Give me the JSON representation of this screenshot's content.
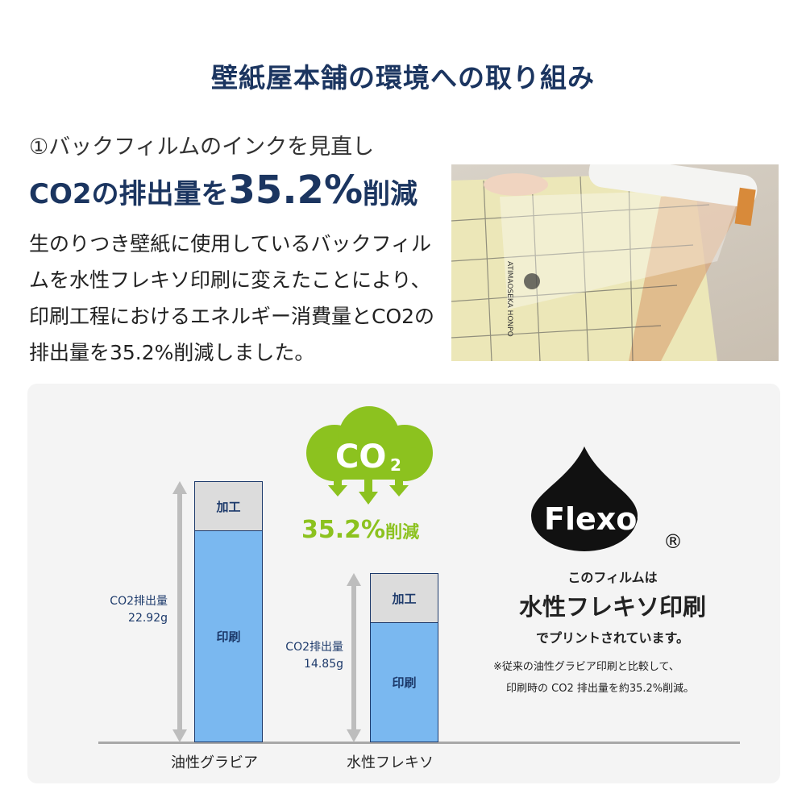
{
  "title": "壁紙屋本舗の環境への取り組み",
  "subtitle": "①バックフィルムのインクを見直し",
  "headline": {
    "pre": "CO2の排出量を",
    "highlight": "35.2%",
    "post": "削減"
  },
  "body": "生のりつき壁紙に使用しているバックフィルムを水性フレキソ印刷に変えたことにより、印刷工程におけるエネルギー消費量とCO2の排出量を35.2%削減しました。",
  "photo": {
    "print_text": "ATIMAOSEKA HONPO"
  },
  "cloud": {
    "label": "CO",
    "sub": "2",
    "reduction": "35.2%",
    "reduction_suffix": "削減",
    "color": "#8cc21f"
  },
  "chart_data": {
    "type": "bar",
    "stacked": true,
    "categories": [
      "油性グラビア",
      "水性フレキソ"
    ],
    "segments": [
      "印刷",
      "加工"
    ],
    "totals": [
      22.92,
      14.85
    ],
    "value_labels": [
      {
        "name": "CO2排出量",
        "value": "22.92g"
      },
      {
        "name": "CO2排出量",
        "value": "14.85g"
      }
    ],
    "colors": {
      "印刷": "#7ab8f0",
      "加工": "#dcdcdc"
    }
  },
  "flexo": {
    "logo": "Flexo",
    "mark": "®",
    "line1": "このフィルムは",
    "line2": "水性フレキソ印刷",
    "line3": "でプリントされています。",
    "note1": "※従来の油性グラビア印刷と比較して、",
    "note2": "印刷時の CO2 排出量を約35.2%削減。"
  }
}
